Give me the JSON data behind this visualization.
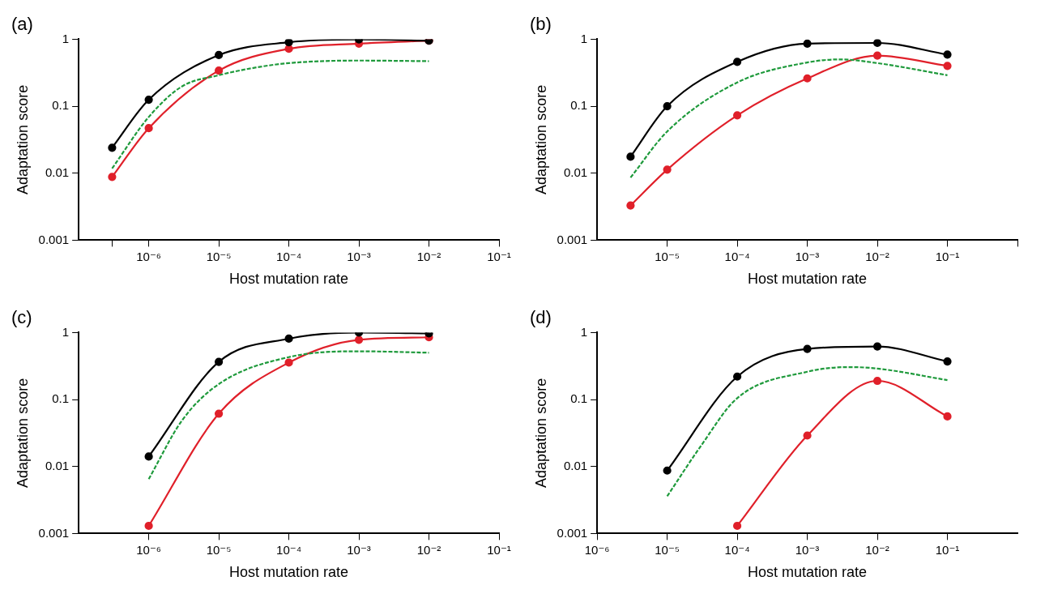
{
  "chart_data": [
    {
      "type": "line",
      "title": "(a)",
      "xlabel": "Host mutation rate",
      "ylabel": "Adaptation score",
      "log": "xy",
      "marker": "circle",
      "xlim": [
        1e-07,
        0.1
      ],
      "ylim": [
        0.001,
        1
      ],
      "xticks": [
        {
          "value": 3e-07,
          "label": null
        },
        {
          "value": 1e-06,
          "label": "10⁻⁶"
        },
        {
          "value": 1e-05,
          "label": "10⁻⁵"
        },
        {
          "value": 0.0001,
          "label": "10⁻⁴"
        },
        {
          "value": 0.001,
          "label": "10⁻³"
        },
        {
          "value": 0.01,
          "label": "10⁻²"
        },
        {
          "value": 0.1,
          "label": "10⁻¹"
        }
      ],
      "yticks": [
        0.001,
        0.01,
        0.1,
        1
      ],
      "series": [
        {
          "color": "#000000",
          "x": [
            3e-07,
            1e-06,
            1e-05,
            0.0001,
            0.001,
            0.01
          ],
          "values": [
            0.024,
            0.125,
            0.58,
            0.9,
            0.99,
            0.95
          ]
        },
        {
          "color": "#1f9a3c",
          "marker": "none",
          "line_style": "dashed",
          "x": [
            3e-07,
            1e-06,
            3e-06,
            1e-05,
            3e-05,
            0.0001,
            0.001,
            0.01
          ],
          "values": [
            0.0118,
            0.069,
            0.198,
            0.29,
            0.37,
            0.44,
            0.48,
            0.47
          ]
        },
        {
          "color": "#e0202a",
          "x": [
            3e-07,
            1e-06,
            1e-05,
            0.0001,
            0.001,
            0.01
          ],
          "values": [
            0.0088,
            0.047,
            0.34,
            0.72,
            0.86,
            0.95
          ]
        }
      ]
    },
    {
      "type": "line",
      "title": "(b)",
      "xlabel": "Host mutation rate",
      "ylabel": "Adaptation score",
      "log": "xy",
      "marker": "circle",
      "xlim": [
        1e-06,
        1
      ],
      "ylim": [
        0.001,
        1
      ],
      "xticks": [
        {
          "value": 1e-05,
          "label": "10⁻⁵"
        },
        {
          "value": 0.0001,
          "label": "10⁻⁴"
        },
        {
          "value": 0.001,
          "label": "10⁻³"
        },
        {
          "value": 0.01,
          "label": "10⁻²"
        },
        {
          "value": 0.1,
          "label": "10⁻¹"
        },
        {
          "value": 1,
          "label": null
        }
      ],
      "yticks": [
        0.001,
        0.01,
        0.1,
        1
      ],
      "series": [
        {
          "color": "#000000",
          "x": [
            3e-06,
            1e-05,
            0.0001,
            0.001,
            0.01,
            0.1
          ],
          "values": [
            0.0176,
            0.1,
            0.46,
            0.86,
            0.88,
            0.59
          ]
        },
        {
          "color": "#1f9a3c",
          "marker": "none",
          "line_style": "dashed",
          "x": [
            3e-06,
            1e-05,
            0.0001,
            0.001,
            0.003,
            0.01,
            0.1
          ],
          "values": [
            0.0086,
            0.042,
            0.226,
            0.45,
            0.5,
            0.44,
            0.29
          ]
        },
        {
          "color": "#e0202a",
          "x": [
            3e-06,
            1e-05,
            0.0001,
            0.001,
            0.01,
            0.1
          ],
          "values": [
            0.0033,
            0.0113,
            0.073,
            0.26,
            0.57,
            0.4
          ]
        }
      ]
    },
    {
      "type": "line",
      "title": "(c)",
      "xlabel": "Host mutation rate",
      "ylabel": "Adaptation score",
      "log": "xy",
      "marker": "circle",
      "xlim": [
        1e-07,
        0.1
      ],
      "ylim": [
        0.001,
        1
      ],
      "xticks": [
        {
          "value": 1e-06,
          "label": "10⁻⁶"
        },
        {
          "value": 1e-05,
          "label": "10⁻⁵"
        },
        {
          "value": 0.0001,
          "label": "10⁻⁴"
        },
        {
          "value": 0.001,
          "label": "10⁻³"
        },
        {
          "value": 0.01,
          "label": "10⁻²"
        },
        {
          "value": 0.1,
          "label": "10⁻¹"
        }
      ],
      "yticks": [
        0.001,
        0.01,
        0.1,
        1
      ],
      "series": [
        {
          "color": "#000000",
          "x": [
            1e-06,
            1e-05,
            0.0001,
            0.001,
            0.01
          ],
          "values": [
            0.0141,
            0.365,
            0.81,
            1.0,
            0.97
          ]
        },
        {
          "color": "#1f9a3c",
          "marker": "none",
          "line_style": "dashed",
          "x": [
            1e-06,
            3e-06,
            1e-05,
            0.0001,
            0.001,
            0.01
          ],
          "values": [
            0.0065,
            0.049,
            0.17,
            0.43,
            0.525,
            0.5
          ]
        },
        {
          "color": "#e0202a",
          "x": [
            1e-06,
            1e-05,
            0.0001,
            0.001,
            0.01
          ],
          "values": [
            0.0013,
            0.0615,
            0.356,
            0.78,
            0.85
          ]
        }
      ]
    },
    {
      "type": "line",
      "title": "(d)",
      "xlabel": "Host mutation rate",
      "ylabel": "Adaptation score",
      "log": "xy",
      "marker": "circle",
      "xlim": [
        1e-06,
        1
      ],
      "ylim": [
        0.001,
        1
      ],
      "xticks": [
        {
          "value": 1e-06,
          "label": "10⁻⁶"
        },
        {
          "value": 1e-05,
          "label": "10⁻⁵"
        },
        {
          "value": 0.0001,
          "label": "10⁻⁴"
        },
        {
          "value": 0.001,
          "label": "10⁻³"
        },
        {
          "value": 0.01,
          "label": "10⁻²"
        },
        {
          "value": 0.1,
          "label": "10⁻¹"
        }
      ],
      "yticks": [
        0.001,
        0.01,
        0.1,
        1
      ],
      "series": [
        {
          "color": "#000000",
          "x": [
            1e-05,
            0.0001,
            0.001,
            0.01,
            0.1
          ],
          "values": [
            0.0087,
            0.22,
            0.57,
            0.62,
            0.37
          ]
        },
        {
          "color": "#1f9a3c",
          "marker": "none",
          "line_style": "dashed",
          "x": [
            1e-05,
            3e-05,
            0.0001,
            0.001,
            0.004,
            0.01,
            0.1
          ],
          "values": [
            0.0036,
            0.02,
            0.105,
            0.26,
            0.305,
            0.29,
            0.195
          ]
        },
        {
          "color": "#e0202a",
          "x": [
            0.0001,
            0.001,
            0.01,
            0.1
          ],
          "values": [
            0.0013,
            0.029,
            0.19,
            0.056
          ]
        }
      ]
    }
  ]
}
